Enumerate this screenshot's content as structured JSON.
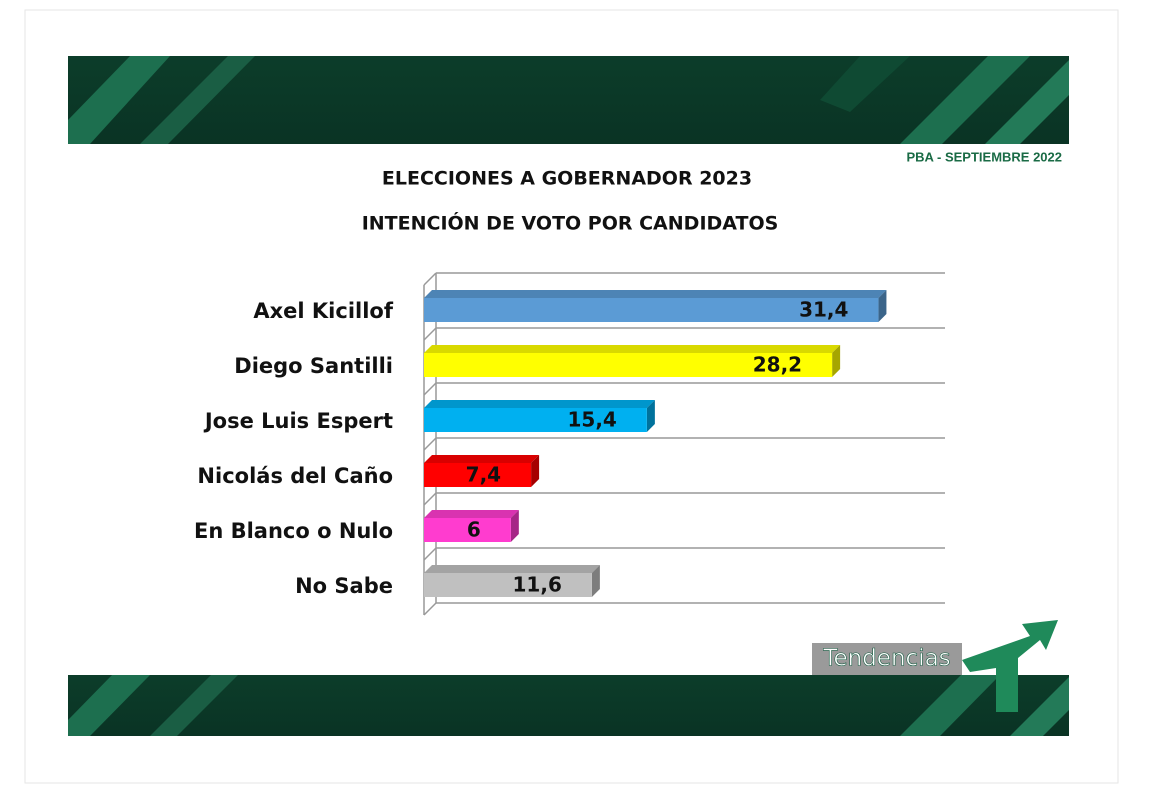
{
  "header": {
    "date": "PBA - SEPTIEMBRE 2022"
  },
  "logo": "Tendencias",
  "chart_data": {
    "type": "bar",
    "orientation": "horizontal",
    "title": "ELECCIONES A GOBERNADOR 2023",
    "subtitle": "INTENCIÓN DE VOTO POR CANDIDATOS",
    "categories": [
      "Axel Kicillof",
      "Diego Santilli",
      "Jose Luis Espert",
      "Nicolás del Caño",
      "En Blanco o Nulo",
      "No Sabe"
    ],
    "values": [
      31.4,
      28.2,
      15.4,
      7.4,
      6,
      11.6
    ],
    "value_labels": [
      "31,4",
      "28,2",
      "15,4",
      "7,4",
      "6",
      "11,6"
    ],
    "colors": [
      "#5b9bd5",
      "#ffff00",
      "#00b0f0",
      "#ff0000",
      "#ff3ccf",
      "#c0c0c0"
    ],
    "xlim": [
      0,
      36
    ]
  }
}
